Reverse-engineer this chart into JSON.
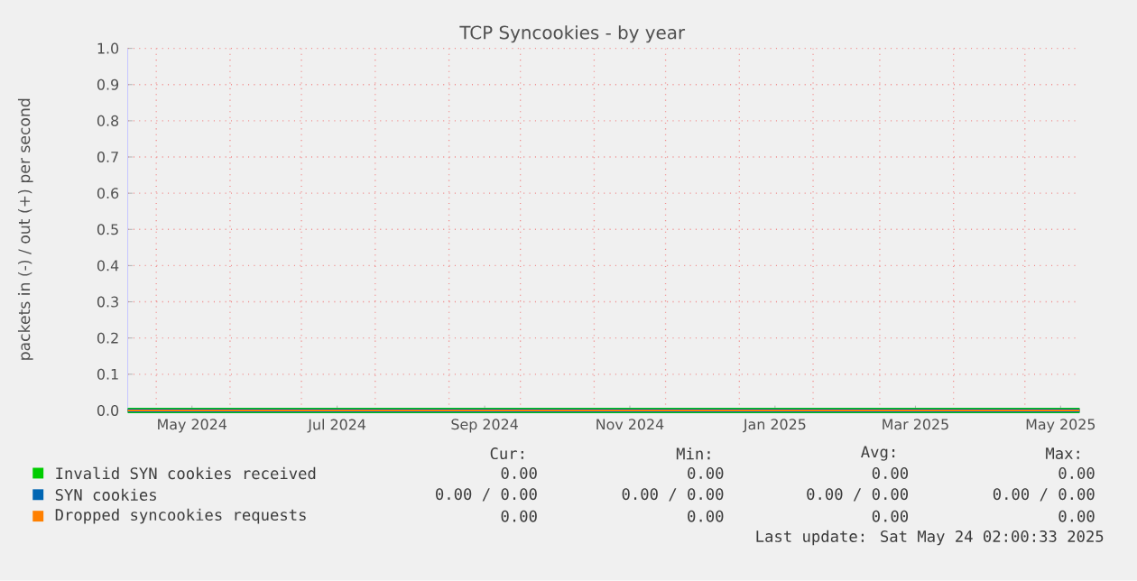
{
  "chart_data": {
    "type": "line",
    "title": "TCP Syncookies - by year",
    "ylabel": "packets in (-) / out (+) per second",
    "xlim": [
      "2024-04-19",
      "2025-05-24"
    ],
    "xticks": [
      {
        "value": "2024-05-01",
        "label": null
      },
      {
        "value": "2024-05-16",
        "label": "May 2024"
      },
      {
        "value": "2024-06-01",
        "label": null
      },
      {
        "value": "2024-07-01",
        "label": null
      },
      {
        "value": "2024-07-16",
        "label": "Jul 2024"
      },
      {
        "value": "2024-08-01",
        "label": null
      },
      {
        "value": "2024-09-01",
        "label": null
      },
      {
        "value": "2024-09-16",
        "label": "Sep 2024"
      },
      {
        "value": "2024-10-01",
        "label": null
      },
      {
        "value": "2024-11-01",
        "label": null
      },
      {
        "value": "2024-11-16",
        "label": "Nov 2024"
      },
      {
        "value": "2024-12-01",
        "label": null
      },
      {
        "value": "2025-01-01",
        "label": null
      },
      {
        "value": "2025-01-16",
        "label": "Jan 2025"
      },
      {
        "value": "2025-02-01",
        "label": null
      },
      {
        "value": "2025-03-01",
        "label": null
      },
      {
        "value": "2025-03-16",
        "label": "Mar 2025"
      },
      {
        "value": "2025-04-01",
        "label": null
      },
      {
        "value": "2025-05-01",
        "label": null
      },
      {
        "value": "2025-05-16",
        "label": "May 2025"
      }
    ],
    "ylim": [
      0,
      1.0
    ],
    "yticks": [
      {
        "value": 0,
        "label": "0.0"
      },
      {
        "value": 0.1,
        "label": "0.1"
      },
      {
        "value": 0.2,
        "label": "0.2"
      },
      {
        "value": 0.3,
        "label": "0.3"
      },
      {
        "value": 0.4,
        "label": "0.4"
      },
      {
        "value": 0.5,
        "label": "0.5"
      },
      {
        "value": 0.6,
        "label": "0.6"
      },
      {
        "value": 0.7,
        "label": "0.7"
      },
      {
        "value": 0.8,
        "label": "0.8"
      },
      {
        "value": 0.9,
        "label": "0.9"
      },
      {
        "value": 1.0,
        "label": "1.0"
      }
    ],
    "grid": true,
    "legend": "bottom",
    "series": [
      {
        "name": "Invalid SYN cookies received",
        "color": "#00cc00",
        "x": [
          "2024-04-19",
          "2025-05-24"
        ],
        "values": [
          0,
          0
        ]
      },
      {
        "name": "SYN cookies",
        "color": "#0066b3",
        "x": [
          "2024-04-19",
          "2025-05-24"
        ],
        "values": [
          0,
          0
        ]
      },
      {
        "name": "Dropped syncookies requests",
        "color": "#ff8000",
        "x": [
          "2024-04-19",
          "2025-05-24"
        ],
        "values": [
          0,
          0
        ]
      }
    ],
    "annotations": [
      "Cur:",
      "Min:",
      "Avg:",
      "Max:",
      "0.00",
      "0.00",
      "0.00",
      "0.00",
      "0.00 /  0.00",
      "0.00 /  0.00",
      "0.00 /  0.00",
      "0.00 /  0.00",
      "0.00",
      "0.00",
      "0.00",
      "0.00",
      "Last update: Sat May 24 02:00:33 2025"
    ]
  }
}
